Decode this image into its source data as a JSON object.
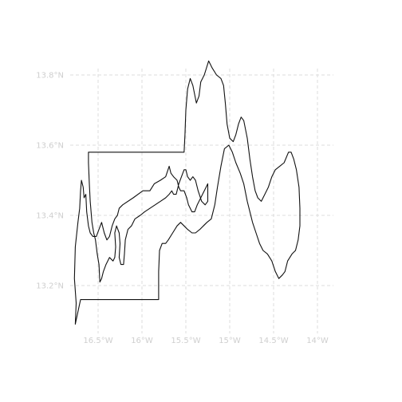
{
  "map": {
    "projection": "lon-lat",
    "lon_range": [
      -16.75,
      -13.85
    ],
    "lat_range": [
      13.05,
      13.88
    ],
    "grid": true,
    "grid_style": "dashed",
    "line_color": "#111111",
    "grid_color": "#dedede",
    "label_color": "#cfcfcf",
    "lon_ticks": [
      {
        "value": -16.5,
        "label": "16.5°W"
      },
      {
        "value": -16.0,
        "label": "16°W"
      },
      {
        "value": -15.5,
        "label": "15.5°W"
      },
      {
        "value": -15.0,
        "label": "15°W"
      },
      {
        "value": -14.5,
        "label": "14.5°W"
      },
      {
        "value": -14.0,
        "label": "14°W"
      }
    ],
    "lat_ticks": [
      {
        "value": 13.2,
        "label": "13.2°N"
      },
      {
        "value": 13.4,
        "label": "13.4°N"
      },
      {
        "value": 13.6,
        "label": "13.6°N"
      },
      {
        "value": 13.8,
        "label": "13.8°N"
      }
    ],
    "outline": [
      [
        -16.76,
        13.09
      ],
      [
        -16.75,
        13.15
      ],
      [
        -16.77,
        13.22
      ],
      [
        -16.76,
        13.31
      ],
      [
        -16.73,
        13.38
      ],
      [
        -16.71,
        13.42
      ],
      [
        -16.7,
        13.47
      ],
      [
        -16.69,
        13.5
      ],
      [
        -16.67,
        13.48
      ],
      [
        -16.66,
        13.45
      ],
      [
        -16.64,
        13.46
      ],
      [
        -16.63,
        13.41
      ],
      [
        -16.61,
        13.37
      ],
      [
        -16.59,
        13.35
      ],
      [
        -16.56,
        13.34
      ],
      [
        -16.52,
        13.34
      ],
      [
        -16.49,
        13.36
      ],
      [
        -16.46,
        13.38
      ],
      [
        -16.43,
        13.35
      ],
      [
        -16.4,
        13.33
      ],
      [
        -16.37,
        13.34
      ],
      [
        -16.34,
        13.37
      ],
      [
        -16.31,
        13.39
      ],
      [
        -16.28,
        13.4
      ],
      [
        -16.26,
        13.42
      ],
      [
        -16.22,
        13.43
      ],
      [
        -16.1,
        13.45
      ],
      [
        -15.99,
        13.47
      ],
      [
        -15.91,
        13.47
      ],
      [
        -15.86,
        13.49
      ],
      [
        -15.79,
        13.5
      ],
      [
        -15.73,
        13.51
      ],
      [
        -15.69,
        13.54
      ],
      [
        -15.67,
        13.52
      ],
      [
        -15.64,
        13.51
      ],
      [
        -15.6,
        13.5
      ],
      [
        -15.58,
        13.48
      ],
      [
        -15.56,
        13.47
      ],
      [
        -15.52,
        13.47
      ],
      [
        -15.49,
        13.45
      ],
      [
        -15.47,
        13.43
      ],
      [
        -15.43,
        13.41
      ],
      [
        -15.4,
        13.41
      ],
      [
        -15.37,
        13.43
      ],
      [
        -15.33,
        13.45
      ],
      [
        -15.29,
        13.47
      ],
      [
        -15.25,
        13.49
      ],
      [
        -15.25,
        13.44
      ],
      [
        -15.28,
        13.43
      ],
      [
        -15.32,
        13.44
      ],
      [
        -15.36,
        13.47
      ],
      [
        -15.39,
        13.5
      ],
      [
        -15.42,
        13.51
      ],
      [
        -15.45,
        13.5
      ],
      [
        -15.48,
        13.51
      ],
      [
        -15.5,
        13.53
      ],
      [
        -15.52,
        13.53
      ],
      [
        -15.55,
        13.51
      ],
      [
        -15.58,
        13.49
      ],
      [
        -15.6,
        13.47
      ],
      [
        -15.61,
        13.46
      ],
      [
        -15.64,
        13.46
      ],
      [
        -15.66,
        13.47
      ],
      [
        -15.69,
        13.46
      ],
      [
        -15.73,
        13.45
      ],
      [
        -15.79,
        13.44
      ],
      [
        -15.85,
        13.43
      ],
      [
        -15.91,
        13.42
      ],
      [
        -15.97,
        13.41
      ],
      [
        -16.02,
        13.4
      ],
      [
        -16.08,
        13.39
      ],
      [
        -16.12,
        13.37
      ],
      [
        -16.16,
        13.36
      ],
      [
        -16.19,
        13.33
      ],
      [
        -16.2,
        13.29
      ],
      [
        -16.21,
        13.26
      ],
      [
        -16.24,
        13.26
      ],
      [
        -16.26,
        13.28
      ],
      [
        -16.25,
        13.32
      ],
      [
        -16.26,
        13.35
      ],
      [
        -16.29,
        13.37
      ],
      [
        -16.31,
        13.35
      ],
      [
        -16.3,
        13.31
      ],
      [
        -16.31,
        13.28
      ],
      [
        -16.33,
        13.27
      ],
      [
        -16.37,
        13.28
      ],
      [
        -16.41,
        13.26
      ],
      [
        -16.44,
        13.24
      ],
      [
        -16.46,
        13.22
      ],
      [
        -16.48,
        13.21
      ],
      [
        -16.49,
        13.26
      ],
      [
        -16.51,
        13.29
      ],
      [
        -16.53,
        13.33
      ],
      [
        -16.55,
        13.35
      ],
      [
        -16.57,
        13.38
      ],
      [
        -16.59,
        13.44
      ],
      [
        -16.6,
        13.49
      ],
      [
        -16.61,
        13.55
      ],
      [
        -16.61,
        13.58
      ],
      [
        -16.11,
        13.58
      ],
      [
        -15.52,
        13.58
      ],
      [
        -15.51,
        13.63
      ],
      [
        -15.5,
        13.7
      ],
      [
        -15.48,
        13.76
      ],
      [
        -15.45,
        13.79
      ],
      [
        -15.42,
        13.77
      ],
      [
        -15.38,
        13.72
      ],
      [
        -15.35,
        13.74
      ],
      [
        -15.33,
        13.78
      ],
      [
        -15.29,
        13.8
      ],
      [
        -15.24,
        13.84
      ],
      [
        -15.2,
        13.82
      ],
      [
        -15.15,
        13.8
      ],
      [
        -15.1,
        13.79
      ],
      [
        -15.07,
        13.77
      ],
      [
        -15.05,
        13.72
      ],
      [
        -15.03,
        13.66
      ],
      [
        -15.0,
        13.62
      ],
      [
        -14.96,
        13.61
      ],
      [
        -14.93,
        13.63
      ],
      [
        -14.9,
        13.66
      ],
      [
        -14.87,
        13.68
      ],
      [
        -14.84,
        13.67
      ],
      [
        -14.8,
        13.62
      ],
      [
        -14.77,
        13.56
      ],
      [
        -14.74,
        13.51
      ],
      [
        -14.71,
        13.47
      ],
      [
        -14.68,
        13.45
      ],
      [
        -14.64,
        13.44
      ],
      [
        -14.6,
        13.46
      ],
      [
        -14.56,
        13.48
      ],
      [
        -14.52,
        13.51
      ],
      [
        -14.48,
        13.53
      ],
      [
        -14.43,
        13.54
      ],
      [
        -14.38,
        13.55
      ],
      [
        -14.33,
        13.58
      ],
      [
        -14.3,
        13.58
      ],
      [
        -14.27,
        13.56
      ],
      [
        -14.24,
        13.53
      ],
      [
        -14.21,
        13.48
      ],
      [
        -14.2,
        13.42
      ],
      [
        -14.2,
        13.37
      ],
      [
        -14.22,
        13.33
      ],
      [
        -14.25,
        13.3
      ],
      [
        -14.29,
        13.29
      ],
      [
        -14.34,
        13.27
      ],
      [
        -14.37,
        13.24
      ],
      [
        -14.4,
        13.23
      ],
      [
        -14.44,
        13.22
      ],
      [
        -14.48,
        13.24
      ],
      [
        -14.52,
        13.27
      ],
      [
        -14.57,
        13.29
      ],
      [
        -14.62,
        13.3
      ],
      [
        -14.66,
        13.32
      ],
      [
        -14.7,
        13.35
      ],
      [
        -14.74,
        13.38
      ],
      [
        -14.8,
        13.44
      ],
      [
        -14.84,
        13.49
      ],
      [
        -14.88,
        13.52
      ],
      [
        -14.93,
        13.55
      ],
      [
        -14.97,
        13.58
      ],
      [
        -15.01,
        13.6
      ],
      [
        -15.06,
        13.59
      ],
      [
        -15.1,
        13.54
      ],
      [
        -15.14,
        13.48
      ],
      [
        -15.17,
        13.43
      ],
      [
        -15.21,
        13.39
      ],
      [
        -15.26,
        13.38
      ],
      [
        -15.3,
        13.37
      ],
      [
        -15.34,
        13.36
      ],
      [
        -15.39,
        13.35
      ],
      [
        -15.43,
        13.35
      ],
      [
        -15.48,
        13.36
      ],
      [
        -15.52,
        13.37
      ],
      [
        -15.56,
        13.38
      ],
      [
        -15.6,
        13.37
      ],
      [
        -15.65,
        13.35
      ],
      [
        -15.7,
        13.33
      ],
      [
        -15.73,
        13.32
      ],
      [
        -15.77,
        13.32
      ],
      [
        -15.8,
        13.3
      ],
      [
        -15.81,
        13.24
      ],
      [
        -15.81,
        13.16
      ],
      [
        -16.35,
        13.16
      ],
      [
        -16.7,
        13.16
      ],
      [
        -16.76,
        13.09
      ]
    ]
  }
}
